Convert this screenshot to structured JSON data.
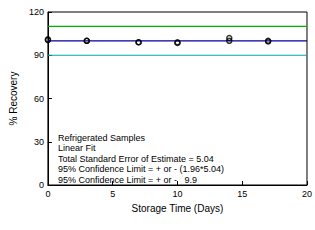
{
  "chart_data": {
    "type": "scatter",
    "xlabel": "Storage Time (Days)",
    "ylabel": "% Recovery",
    "xlim": [
      0,
      20
    ],
    "xticks": [
      0,
      5,
      10,
      15,
      20
    ],
    "ylim": [
      0,
      120
    ],
    "yticks": [
      0,
      30,
      60,
      90,
      120
    ],
    "grid": false,
    "annotations": [
      "Refrigerated Samples",
      "Linear Fit",
      "Total Standard Error of Estimate = 5.04",
      "95% Confidence Limit = + or - (1.96*5.04)",
      "95% Confidence Limit = + or -   9.9"
    ],
    "series": [
      {
        "type": "scatter",
        "color": "#000000",
        "marker": "circle",
        "x": [
          0,
          0,
          3,
          3,
          7,
          7,
          10,
          10,
          14,
          14,
          17,
          17
        ],
        "values": [
          101,
          100.5,
          100,
          100,
          99,
          99,
          98.5,
          99,
          102,
          100,
          99.5,
          100
        ]
      },
      {
        "type": "line",
        "color": "#00009c",
        "line_style": "solid",
        "x": [
          0,
          20
        ],
        "values": [
          100,
          100
        ]
      },
      {
        "type": "line",
        "color": "#00b000",
        "line_style": "solid",
        "x": [
          0,
          20
        ],
        "values": [
          110,
          110
        ]
      },
      {
        "type": "line",
        "color": "#00a8a8",
        "line_style": "solid",
        "x": [
          0,
          20
        ],
        "values": [
          90,
          90
        ]
      }
    ]
  }
}
